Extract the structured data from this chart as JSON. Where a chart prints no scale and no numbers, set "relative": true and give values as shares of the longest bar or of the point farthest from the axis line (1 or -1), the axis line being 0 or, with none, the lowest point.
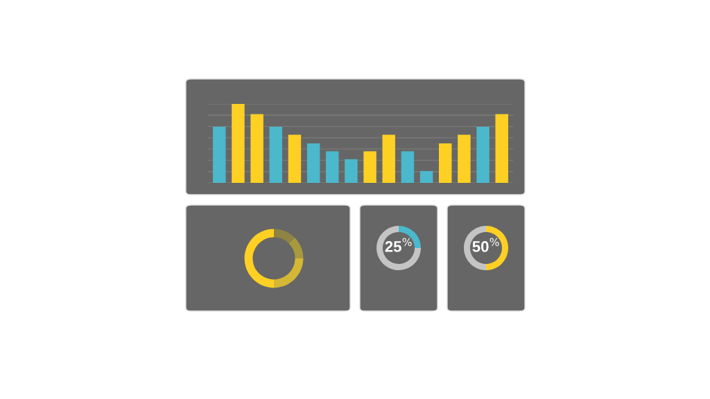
{
  "chart_data": [
    {
      "type": "bar",
      "relative": true,
      "grid": "y",
      "categories": [
        null,
        null,
        null,
        null,
        null,
        null,
        null,
        null,
        null,
        null,
        null,
        null,
        null,
        null,
        null,
        null
      ],
      "values": [
        0.71,
        1,
        0.87,
        0.71,
        0.61,
        0.5,
        0.4,
        0.3,
        0.4,
        0.61,
        0.4,
        0.15,
        0.5,
        0.61,
        0.71,
        0.87
      ],
      "colors": [
        "#4bb8cc",
        "#fdd023",
        "#fdd023",
        "#4bb8cc",
        "#fdd023",
        "#4bb8cc",
        "#4bb8cc",
        "#4bb8cc",
        "#fdd023",
        "#fdd023",
        "#4bb8cc",
        "#4bb8cc",
        "#fdd023",
        "#fdd023",
        "#4bb8cc",
        "#fdd023"
      ]
    },
    {
      "type": "donut",
      "categories": [
        null,
        null,
        null,
        null
      ],
      "values": [
        12.5,
        12.5,
        25,
        50
      ],
      "colors": [
        "#8f8443",
        "#a89a3c",
        "#d4b735",
        "#fdd023"
      ]
    },
    {
      "type": "donut",
      "categories": [
        null,
        null
      ],
      "values": [
        25,
        75
      ],
      "colors": [
        "#4bb8cc",
        "#c4c4c4"
      ],
      "annotations": [
        "25$^{%}$"
      ]
    },
    {
      "type": "donut",
      "categories": [
        null,
        null
      ],
      "values": [
        50,
        50
      ],
      "colors": [
        "#fdd023",
        "#c4c4c4"
      ],
      "annotations": [
        "50$^{%}$"
      ]
    }
  ]
}
